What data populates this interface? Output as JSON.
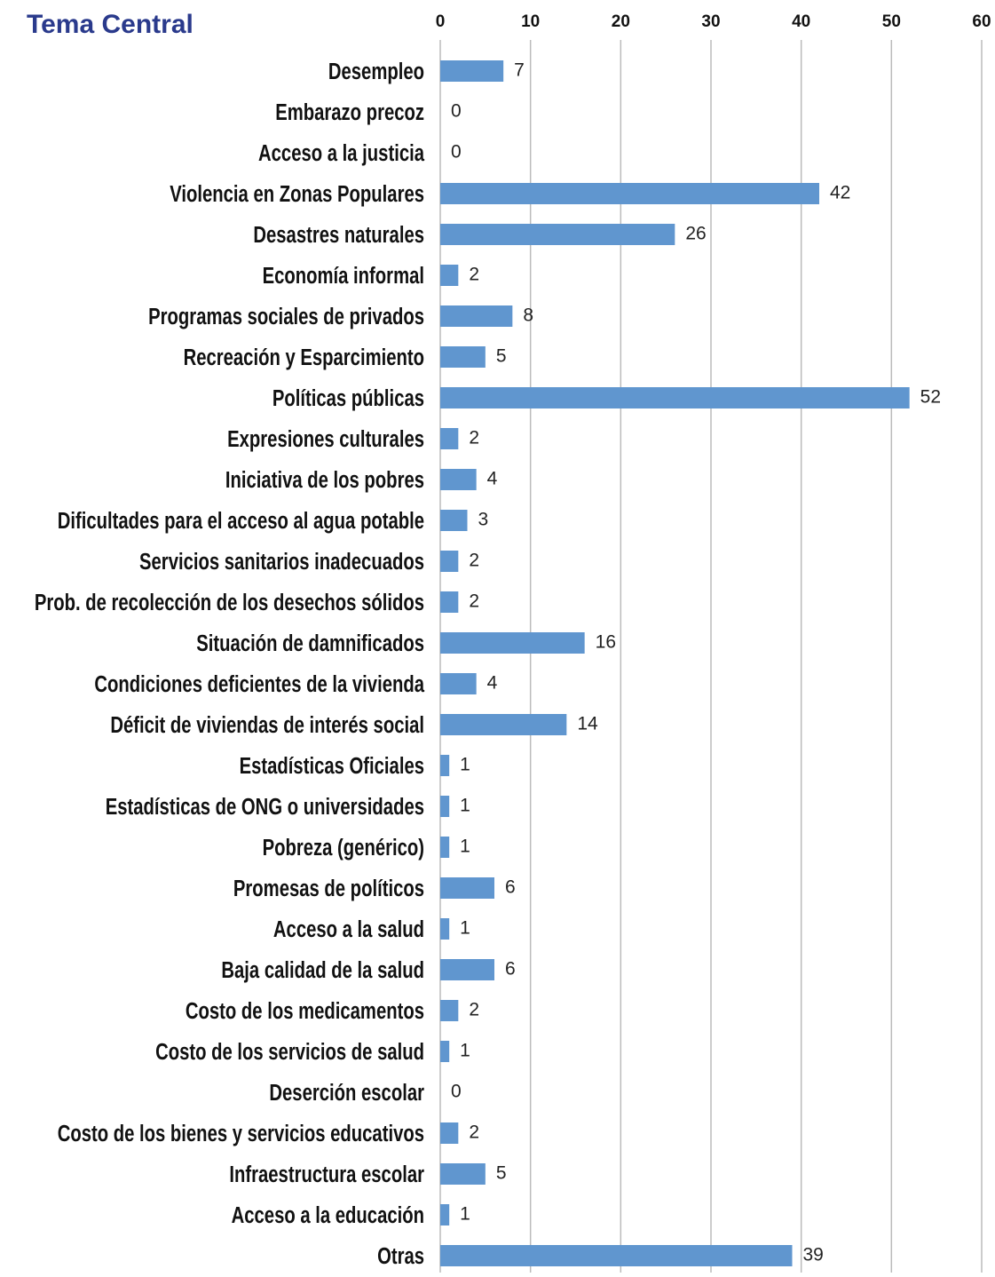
{
  "chart_data": {
    "type": "bar",
    "orientation": "horizontal",
    "title": "Tema Central",
    "categories": [
      "Desempleo",
      "Embarazo precoz",
      "Acceso a la justicia",
      "Violencia en Zonas Populares",
      "Desastres naturales",
      "Economía informal",
      "Programas sociales de privados",
      "Recreación y Esparcimiento",
      "Políticas públicas",
      "Expresiones culturales",
      "Iniciativa de los pobres",
      "Dificultades para el acceso al agua potable",
      "Servicios sanitarios inadecuados",
      "Prob. de recolección de los desechos sólidos",
      "Situación de damnificados",
      "Condiciones deficientes de la vivienda",
      "Déficit de viviendas de interés social",
      "Estadísticas Oficiales",
      "Estadísticas de ONG o universidades",
      "Pobreza (genérico)",
      "Promesas de políticos",
      "Acceso a la salud",
      "Baja calidad de la salud",
      "Costo de los medicamentos",
      "Costo de los servicios de salud",
      "Deserción escolar",
      "Costo de los bienes y servicios educativos",
      "Infraestructura escolar",
      "Acceso a la educación",
      "Otras"
    ],
    "values": [
      7,
      0,
      0,
      42,
      26,
      2,
      8,
      5,
      52,
      2,
      4,
      3,
      2,
      2,
      16,
      4,
      14,
      1,
      1,
      1,
      6,
      1,
      6,
      2,
      1,
      0,
      2,
      5,
      1,
      39
    ],
    "color": "#6096cf",
    "xlim": [
      0,
      60
    ],
    "xticks": [
      0,
      10,
      20,
      30,
      40,
      50,
      60
    ],
    "grid": true
  }
}
